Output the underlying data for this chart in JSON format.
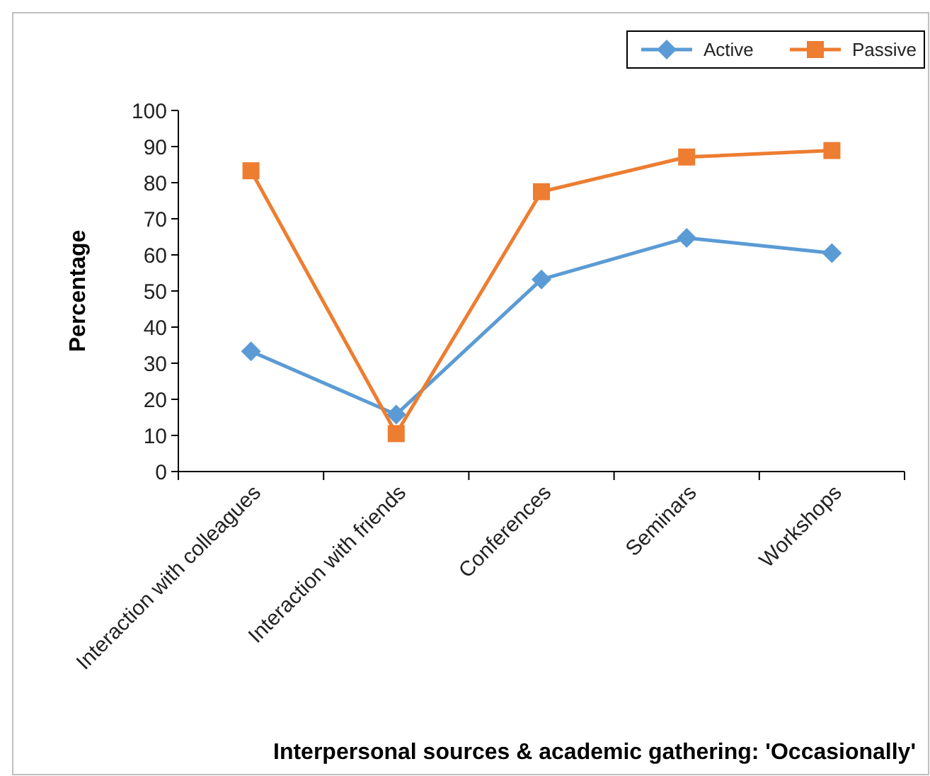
{
  "chart_data": {
    "type": "line",
    "xlabel": "Interpersonal sources & academic gathering: 'Occasionally'",
    "ylabel": "Percentage",
    "categories": [
      "Interaction with colleagues",
      "Interaction with friends",
      "Conferences",
      "Seminars",
      "Workshops"
    ],
    "series": [
      {
        "name": "Active",
        "color": "#5b9bd5",
        "marker": "diamond",
        "values": [
          33.3,
          15.8,
          53.2,
          64.7,
          60.5
        ]
      },
      {
        "name": "Passive",
        "color": "#ed7d31",
        "marker": "square",
        "values": [
          83.3,
          10.5,
          77.5,
          87.1,
          88.9
        ]
      }
    ],
    "ylim": [
      0,
      100
    ],
    "yticks": [
      0,
      10,
      20,
      30,
      40,
      50,
      60,
      70,
      80,
      90,
      100
    ],
    "grid": false,
    "legend": "top right"
  }
}
